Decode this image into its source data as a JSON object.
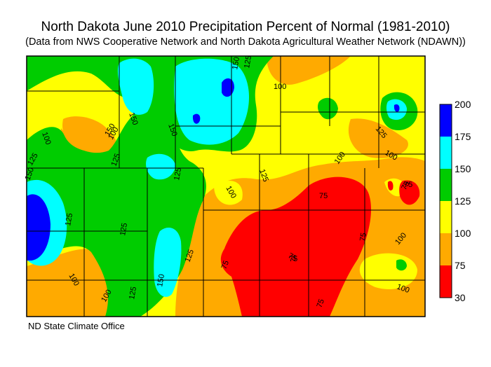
{
  "title": "North Dakota June 2010 Precipitation Percent of Normal (1981-2010)",
  "subtitle": "(Data from NWS Cooperative Network and North Dakota Agricultural Weather Network (NDAWN))",
  "credit": "ND State Climate Office",
  "legend": {
    "bins": [
      {
        "range": "175-200",
        "color": "#0000ff"
      },
      {
        "range": "150-175",
        "color": "#00ffff"
      },
      {
        "range": "125-150",
        "color": "#00cc00"
      },
      {
        "range": "100-125",
        "color": "#ffff00"
      },
      {
        "range": "75-100",
        "color": "#ffaa00"
      },
      {
        "range": "30-75",
        "color": "#ff0000"
      }
    ],
    "labels": [
      "200",
      "175",
      "150",
      "125",
      "100",
      "75",
      "30"
    ]
  },
  "contour_labels": {
    "a": "150",
    "b": "125",
    "c": "100",
    "d": "100",
    "e": "150",
    "f": "150",
    "g": "125",
    "h": "125",
    "i": "150",
    "j": "125",
    "k": "125",
    "l": "100",
    "m": "125",
    "n": "75",
    "o": "75",
    "p": "75",
    "q": "75",
    "r": "100",
    "s": "100",
    "t": "100",
    "u": "125",
    "v": "150",
    "w": "125",
    "x": "100",
    "y": "75",
    "z": "75",
    "aa": "75",
    "ab": "100",
    "ac": "100",
    "ad": "125",
    "ae": "100",
    "af": "75",
    "ag": "150",
    "ah": "125"
  }
}
